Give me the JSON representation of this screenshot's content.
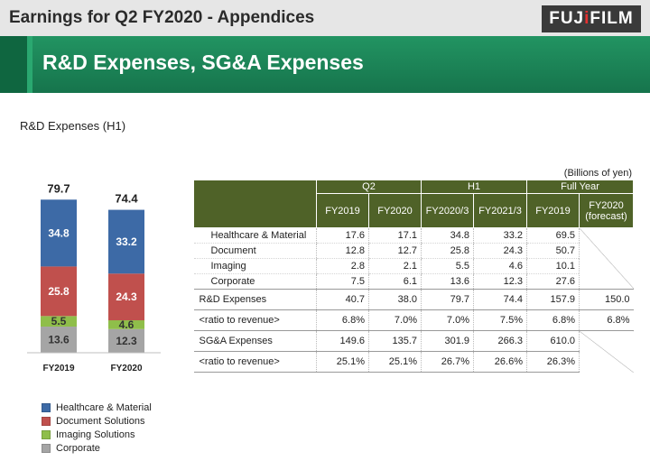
{
  "header": {
    "top_title": "Earnings for Q2 FY2020 - Appendices",
    "logo_pre": "FUJ",
    "logo_dot": "i",
    "logo_post": "FILM",
    "slide_title": "R&D Expenses, SG&A Expenses"
  },
  "chart_section_label": "R&D Expenses (H1)",
  "chart_data": {
    "type": "bar",
    "stacked": true,
    "categories": [
      "FY2019",
      "FY2020"
    ],
    "totals": [
      79.7,
      74.4
    ],
    "series": [
      {
        "name": "Corporate",
        "values": [
          13.6,
          12.3
        ],
        "color": "#a5a5a5"
      },
      {
        "name": "Imaging Solutions",
        "values": [
          5.5,
          4.6
        ],
        "color": "#8fbe4a"
      },
      {
        "name": "Document Solutions",
        "values": [
          25.8,
          24.3
        ],
        "color": "#c0504d"
      },
      {
        "name": "Healthcare & Material",
        "values": [
          34.8,
          33.2
        ],
        "color": "#3d6aa6"
      }
    ],
    "ylim": [
      0,
      85
    ],
    "grid": false,
    "legend_position": "bottom-left"
  },
  "legend": [
    {
      "label": "Healthcare & Material",
      "color": "#3d6aa6"
    },
    {
      "label": "Document Solutions",
      "color": "#c0504d"
    },
    {
      "label": "Imaging Solutions",
      "color": "#8fbe4a"
    },
    {
      "label": "Corporate",
      "color": "#a5a5a5"
    }
  ],
  "table": {
    "units": "(Billions of yen)",
    "groups": {
      "q2": "Q2",
      "h1": "H1",
      "full_year": "Full Year"
    },
    "columns": [
      "FY2019",
      "FY2020",
      "FY2020/3",
      "FY2021/3",
      "FY2019",
      "FY2020",
      "(forecast)"
    ],
    "rows": {
      "healthcare": {
        "label": "Healthcare & Material",
        "values": [
          "17.6",
          "17.1",
          "34.8",
          "33.2",
          "69.5"
        ]
      },
      "document": {
        "label": "Document",
        "values": [
          "12.8",
          "12.7",
          "25.8",
          "24.3",
          "50.7"
        ]
      },
      "imaging": {
        "label": "Imaging",
        "values": [
          "2.8",
          "2.1",
          "5.5",
          "4.6",
          "10.1"
        ]
      },
      "corporate": {
        "label": "Corporate",
        "values": [
          "7.5",
          "6.1",
          "13.6",
          "12.3",
          "27.6"
        ]
      },
      "rd": {
        "label": "R&D Expenses",
        "values": [
          "40.7",
          "38.0",
          "79.7",
          "74.4",
          "157.9",
          "150.0"
        ]
      },
      "rd_ratio": {
        "label": "<ratio to revenue>",
        "values": [
          "6.8%",
          "7.0%",
          "7.0%",
          "7.5%",
          "6.8%",
          "6.8%"
        ]
      },
      "sga": {
        "label": "SG&A Expenses",
        "values": [
          "149.6",
          "135.7",
          "301.9",
          "266.3",
          "610.0"
        ]
      },
      "sga_ratio": {
        "label": "<ratio to revenue>",
        "values": [
          "25.1%",
          "25.1%",
          "26.7%",
          "26.6%",
          "26.3%"
        ]
      }
    }
  }
}
